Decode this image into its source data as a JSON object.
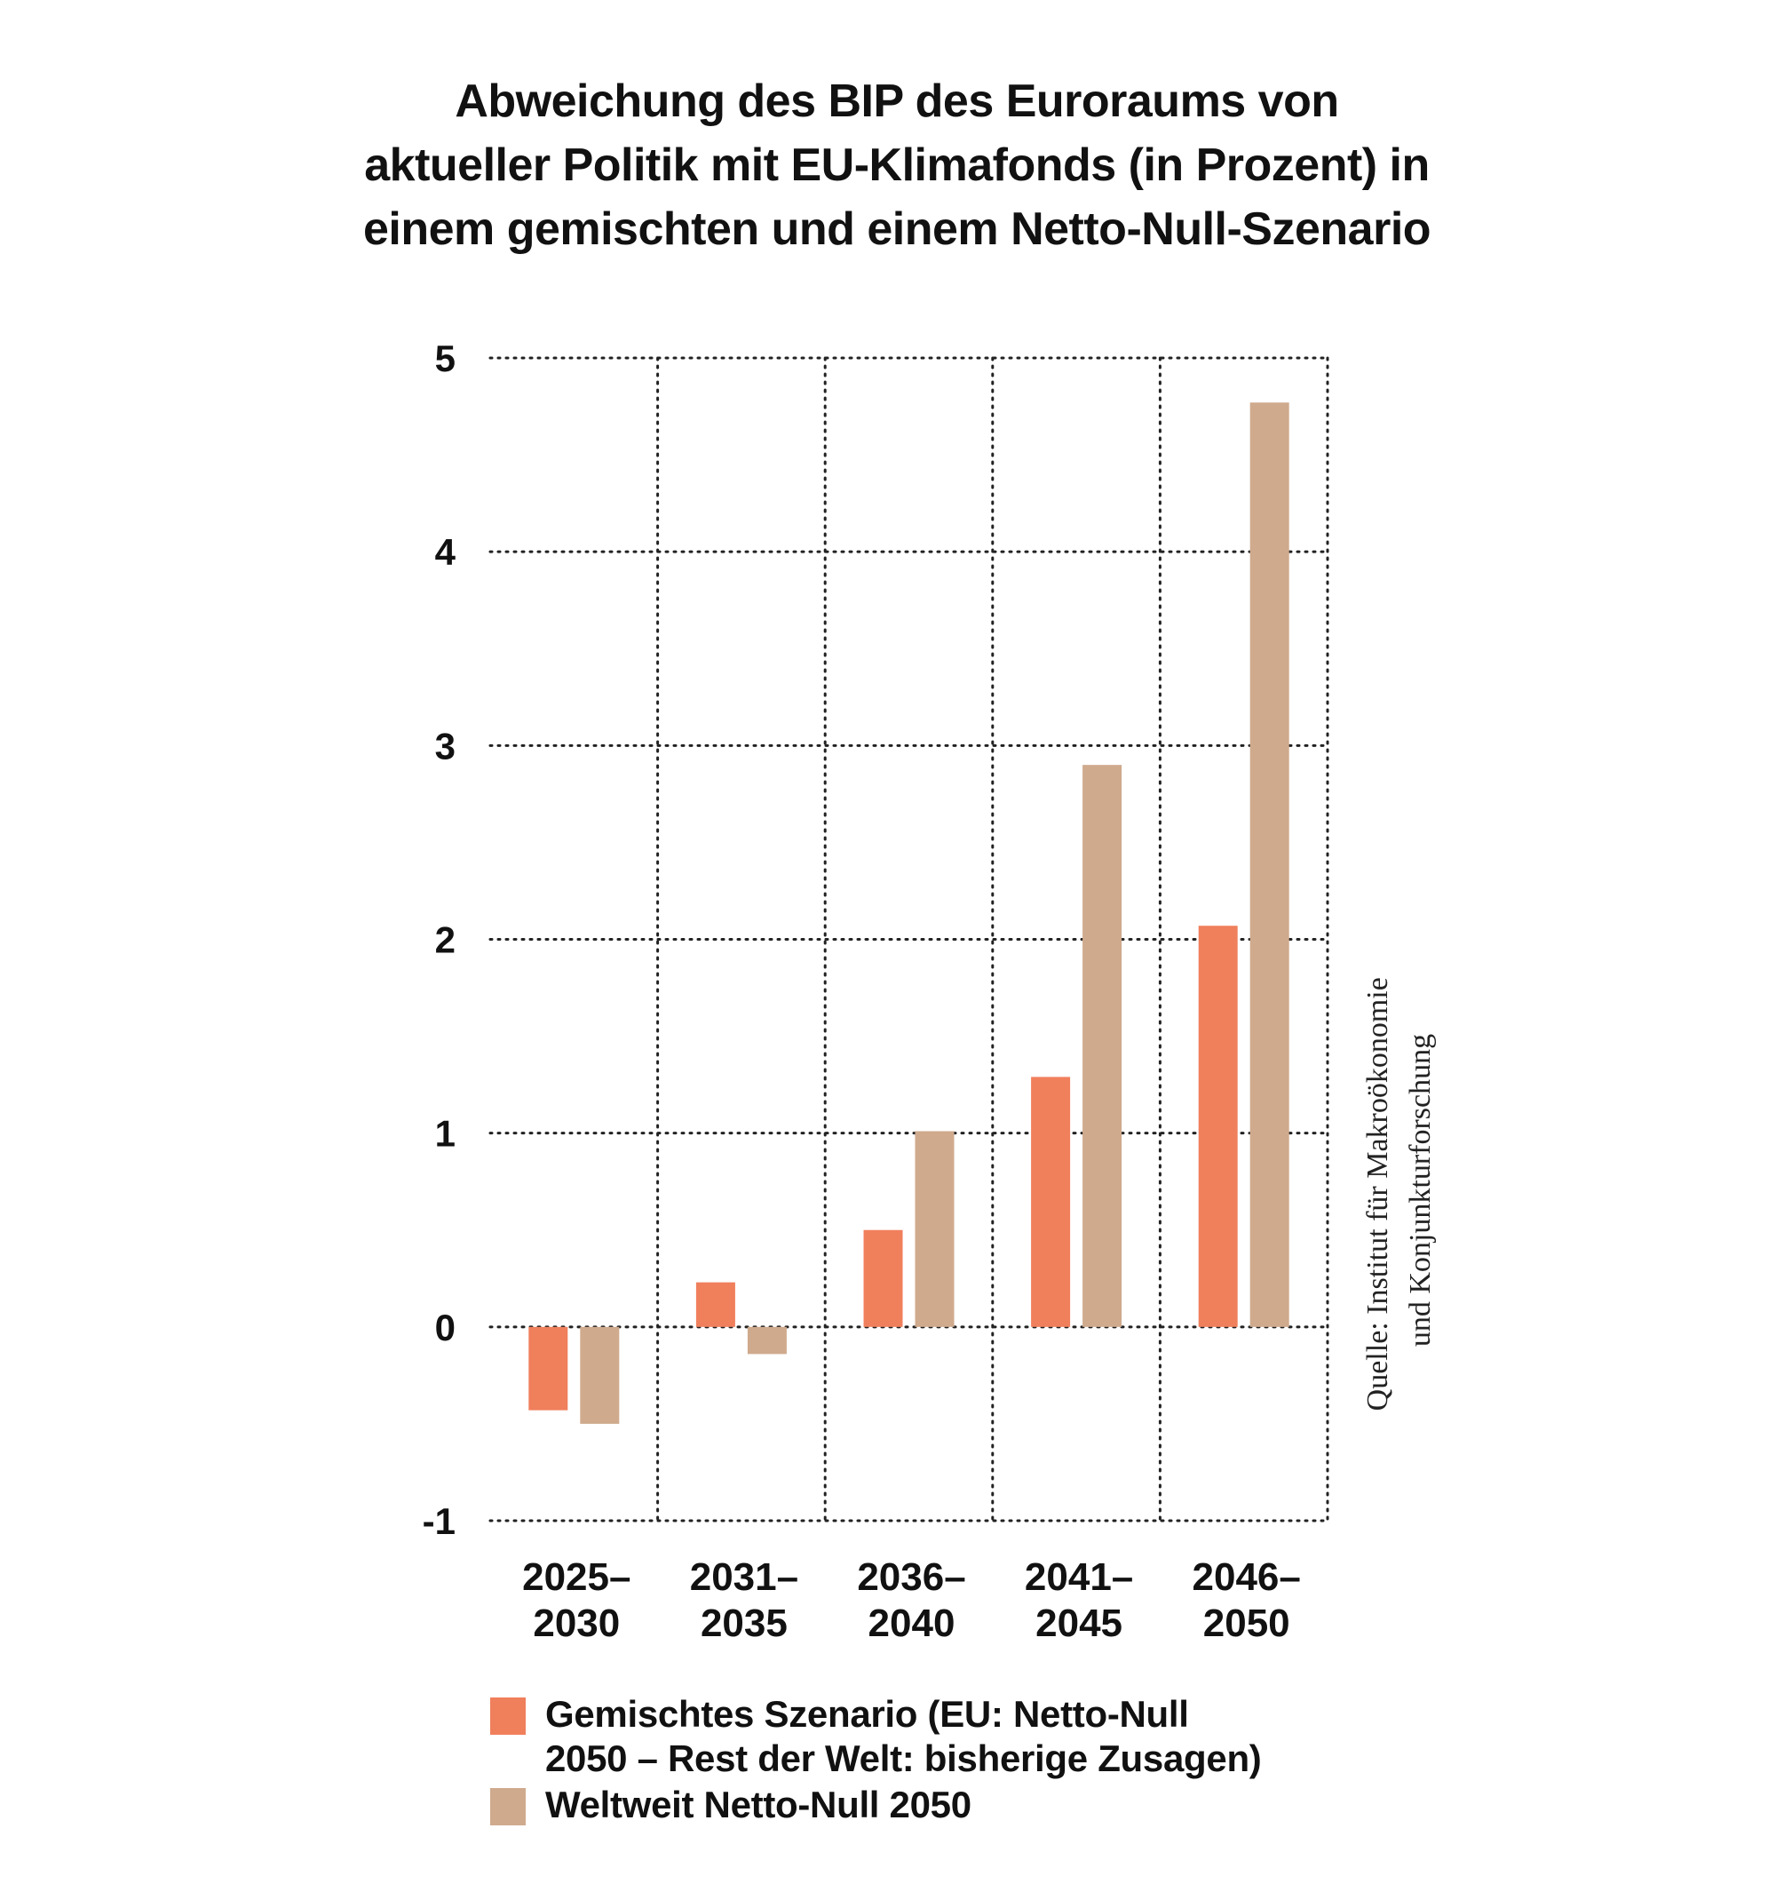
{
  "title_lines": [
    "Abweichung des BIP des Euroraums von",
    "aktueller Politik mit EU-Klimafonds (in Prozent) in",
    "einem gemischten und einem Netto-Null-Szenario"
  ],
  "source_lines": [
    "Quelle: Institut für Makroökonomie",
    "und Konjunkturforschung"
  ],
  "colors": {
    "series1": "#f07f5c",
    "series2": "#cfaa8d",
    "grid": "#222222",
    "text": "#111111"
  },
  "chart_data": {
    "type": "bar",
    "title": "Abweichung des BIP des Euroraums von aktueller Politik mit EU-Klimafonds (in Prozent) in einem gemischten und einem Netto-Null-Szenario",
    "categories": [
      [
        "2025–",
        "2030"
      ],
      [
        "2031–",
        "2035"
      ],
      [
        "2036–",
        "2040"
      ],
      [
        "2041–",
        "2045"
      ],
      [
        "2046–",
        "2050"
      ]
    ],
    "series": [
      {
        "name": "Gemischtes Szenario (EU: Netto-Null 2050 – Rest der Welt: bisherige Zusagen)",
        "legend_lines": [
          "Gemischtes Szenario (EU: Netto-Null",
          "2050 – Rest der Welt: bisherige Zusagen)"
        ],
        "values": [
          -0.43,
          0.23,
          0.5,
          1.29,
          2.07
        ]
      },
      {
        "name": "Weltweit Netto-Null 2050",
        "legend_lines": [
          "Weltweit Netto-Null 2050"
        ],
        "values": [
          -0.5,
          -0.14,
          1.01,
          2.9,
          4.77
        ]
      }
    ],
    "yticks": [
      "5",
      "4",
      "3",
      "2",
      "1",
      "0",
      "-1"
    ],
    "ytick_values": [
      5,
      4,
      3,
      2,
      1,
      0,
      -1
    ],
    "ylim": [
      -1,
      5
    ],
    "grid": true,
    "xlabel": "",
    "ylabel": "",
    "legend_position": "bottom"
  }
}
